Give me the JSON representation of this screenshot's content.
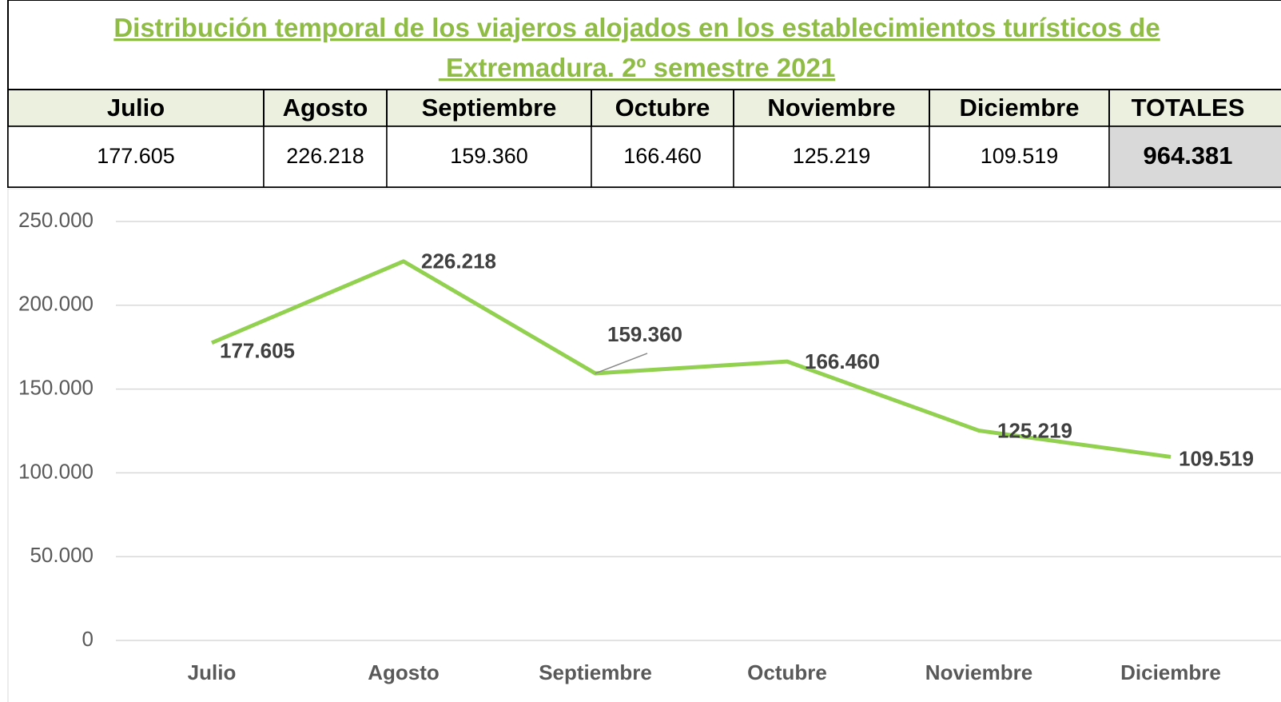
{
  "table": {
    "title": "Distribución temporal de los viajeros alojados en los establecimientos turísticos de Extremadura. 2º semestre 2021",
    "header": [
      "Julio",
      "Agosto",
      "Septiembre",
      "Octubre",
      "Noviembre",
      "Diciembre",
      "TOTALES"
    ],
    "row": [
      "177.605",
      "226.218",
      "159.360",
      "166.460",
      "125.219",
      "109.519",
      "964.381"
    ]
  },
  "chart_data": {
    "type": "line",
    "categories": [
      "Julio",
      "Agosto",
      "Septiembre",
      "Octubre",
      "Noviembre",
      "Diciembre"
    ],
    "series": [
      {
        "color": "#92d050",
        "values": [
          177605,
          226218,
          159360,
          166460,
          125219,
          109519
        ],
        "value_labels": [
          "177.605",
          "226.218",
          "159.360",
          "166.460",
          "125.219",
          "109.519"
        ]
      }
    ],
    "ylim": [
      0,
      250000
    ],
    "yticks": [
      0,
      {
        "value": 50000,
        "label": "50.000"
      },
      {
        "value": 100000,
        "label": "100.000"
      },
      {
        "value": 150000,
        "label": "150.000"
      },
      {
        "value": 200000,
        "label": "200.000"
      },
      {
        "value": 250000,
        "label": "250.000"
      }
    ],
    "grid": true
  }
}
